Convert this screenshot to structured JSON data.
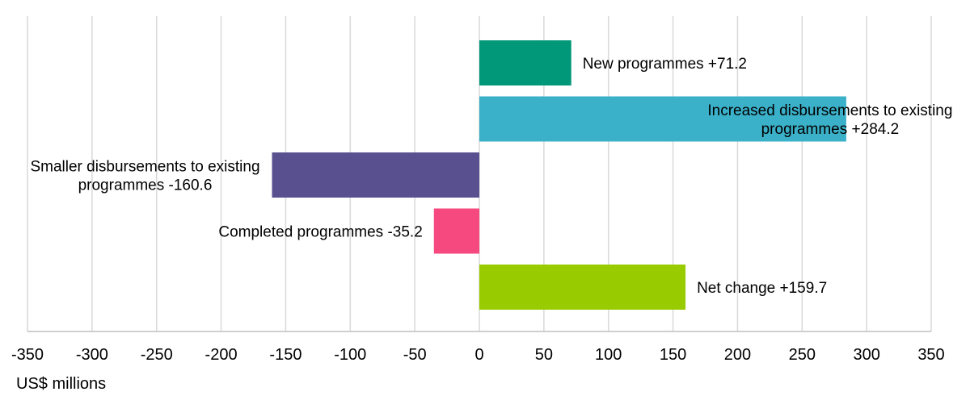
{
  "chart_data": {
    "type": "bar",
    "orientation": "horizontal",
    "title": "",
    "xlabel": "US$ millions",
    "ylabel": "",
    "xlim": [
      -350,
      350
    ],
    "xticks": [
      -350,
      -300,
      -250,
      -200,
      -150,
      -100,
      -50,
      0,
      50,
      100,
      150,
      200,
      250,
      300,
      350
    ],
    "grid": true,
    "legend": "none",
    "bars": [
      {
        "category": "New programmes",
        "value": 71.2,
        "label_lines": [
          "New programmes +71.2"
        ],
        "color": "#009879"
      },
      {
        "category": "Increased disbursements to existing programmes",
        "value": 284.2,
        "label_lines": [
          "Increased disbursements to existing",
          "programmes +284.2"
        ],
        "color": "#3BB1C9"
      },
      {
        "category": "Smaller disbursements to existing programmes",
        "value": -160.6,
        "label_lines": [
          "Smaller disbursements to existing",
          "programmes -160.6"
        ],
        "color": "#58508F"
      },
      {
        "category": "Completed programmes",
        "value": -35.2,
        "label_lines": [
          "Completed programmes -35.2"
        ],
        "color": "#F5497F"
      },
      {
        "category": "Net change",
        "value": 159.7,
        "label_lines": [
          "Net change +159.7"
        ],
        "color": "#99CC00"
      }
    ]
  }
}
